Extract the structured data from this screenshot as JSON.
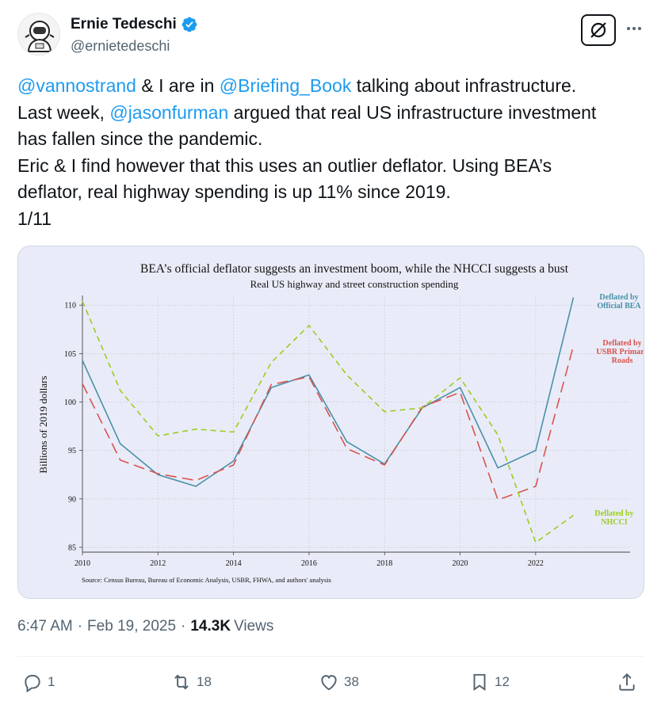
{
  "author": {
    "display_name": "Ernie Tedeschi",
    "handle": "@ernietedeschi",
    "avatar_icon": "astronaut-avatar-icon",
    "verified_icon": "verified-badge-icon"
  },
  "tweet": {
    "line1": {
      "mention1": "@vannostrand",
      "t1": " & I are in ",
      "mention2": "@Briefing_Book",
      "t2": " talking about infrastructure."
    },
    "line2": {
      "t1": "Last week, ",
      "mention": "@jasonfurman",
      "t2": " argued that real US infrastructure investment"
    },
    "line3": "has fallen since the pandemic.",
    "line4": "Eric & I find however that this uses an outlier deflator. Using BEA’s",
    "line5": "deflator, real highway spending is up 11% since 2019.",
    "line6": "1/11"
  },
  "chart_data": {
    "type": "line",
    "title": "BEA’s official deflator suggests an investment boom, while the NHCCI suggests a bust",
    "subtitle": "Real US highway and street construction spending",
    "ylabel": "Billions of 2019 dollars",
    "xlabel": "",
    "xlim": [
      2010,
      2024.5
    ],
    "ylim": [
      84.5,
      111
    ],
    "x_ticks": [
      "2010",
      "2012",
      "2014",
      "2016",
      "2018",
      "2020",
      "2022"
    ],
    "y_ticks": [
      "85",
      "90",
      "95",
      "100",
      "105",
      "110"
    ],
    "x": [
      2010,
      2011,
      2012,
      2013,
      2014,
      2015,
      2016,
      2017,
      2018,
      2019,
      2020,
      2021,
      2022,
      2023
    ],
    "series": [
      {
        "name": "Deflated by Official BEA",
        "label_lines": [
          "Deflated by",
          "Official BEA"
        ],
        "color": "#4a90a8",
        "dash": "",
        "values": [
          104.3,
          95.7,
          92.5,
          91.3,
          93.9,
          101.5,
          102.8,
          95.9,
          93.6,
          99.4,
          101.5,
          93.2,
          95.0,
          110.8
        ]
      },
      {
        "name": "Deflated by USBR Primary Roads",
        "label_lines": [
          "Deflated by",
          "USBR Primary",
          "Roads"
        ],
        "color": "#d9534f",
        "dash": "14,7",
        "values": [
          101.9,
          94.0,
          92.6,
          91.9,
          93.5,
          101.8,
          102.6,
          95.2,
          93.5,
          99.5,
          101.0,
          89.9,
          91.3,
          105.8
        ]
      },
      {
        "name": "Deflated by NHCCI",
        "label_lines": [
          "Deflated by",
          "NHCCI"
        ],
        "color": "#9acd1e",
        "dash": "7,5",
        "values": [
          110.4,
          101.2,
          96.5,
          97.2,
          96.9,
          104.1,
          107.9,
          102.8,
          99.0,
          99.4,
          102.5,
          96.6,
          85.5,
          88.3
        ]
      }
    ],
    "source": "Source: Census Bureau, Bureau of Economic Analysis, USBR, FHWA, and authors' analysis",
    "grid": true,
    "background": "#e9ecf8"
  },
  "meta": {
    "time": "6:47 AM",
    "sep1": "·",
    "date": "Feb 19, 2025",
    "sep2": "·",
    "views_count": "14.3K",
    "views_label": "Views"
  },
  "actions": {
    "replies": "1",
    "reposts": "18",
    "likes": "38",
    "bookmarks": "12"
  },
  "colors": {
    "link": "#1d9bf0",
    "secondary_text": "#536471",
    "verified": "#1d9bf0"
  }
}
